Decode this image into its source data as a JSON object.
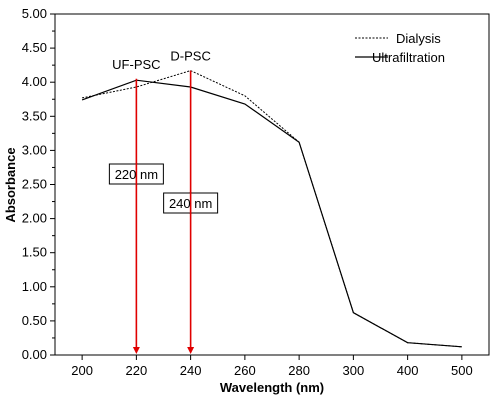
{
  "chart_data": {
    "type": "line",
    "xlabel": "Wavelength (nm)",
    "ylabel": "Absorbance",
    "categories": [
      "200",
      "220",
      "240",
      "260",
      "280",
      "300",
      "400",
      "500"
    ],
    "ylim": [
      0,
      5
    ],
    "yticks": [
      "0.00",
      "0.50",
      "1.00",
      "1.50",
      "2.00",
      "2.50",
      "3.00",
      "3.50",
      "4.00",
      "4.50",
      "5.00"
    ],
    "grid": false,
    "legend_position": "top-right",
    "series": [
      {
        "name": "Dialysis",
        "style": "dashed",
        "color": "#000000",
        "values": [
          3.77,
          3.93,
          4.17,
          3.8,
          3.12,
          0.62,
          0.18,
          0.12
        ]
      },
      {
        "name": "Ultrafiltration",
        "style": "solid",
        "color": "#000000",
        "values": [
          3.74,
          4.03,
          3.93,
          3.68,
          3.12,
          0.62,
          0.18,
          0.12
        ]
      }
    ],
    "annotations": [
      {
        "label": "UF-PSC",
        "callout": "220 nm",
        "category": "220",
        "value": 4.05
      },
      {
        "label": "D-PSC",
        "callout": "240 nm",
        "category": "240",
        "value": 4.17
      }
    ],
    "annotation_color": "#e00000"
  }
}
